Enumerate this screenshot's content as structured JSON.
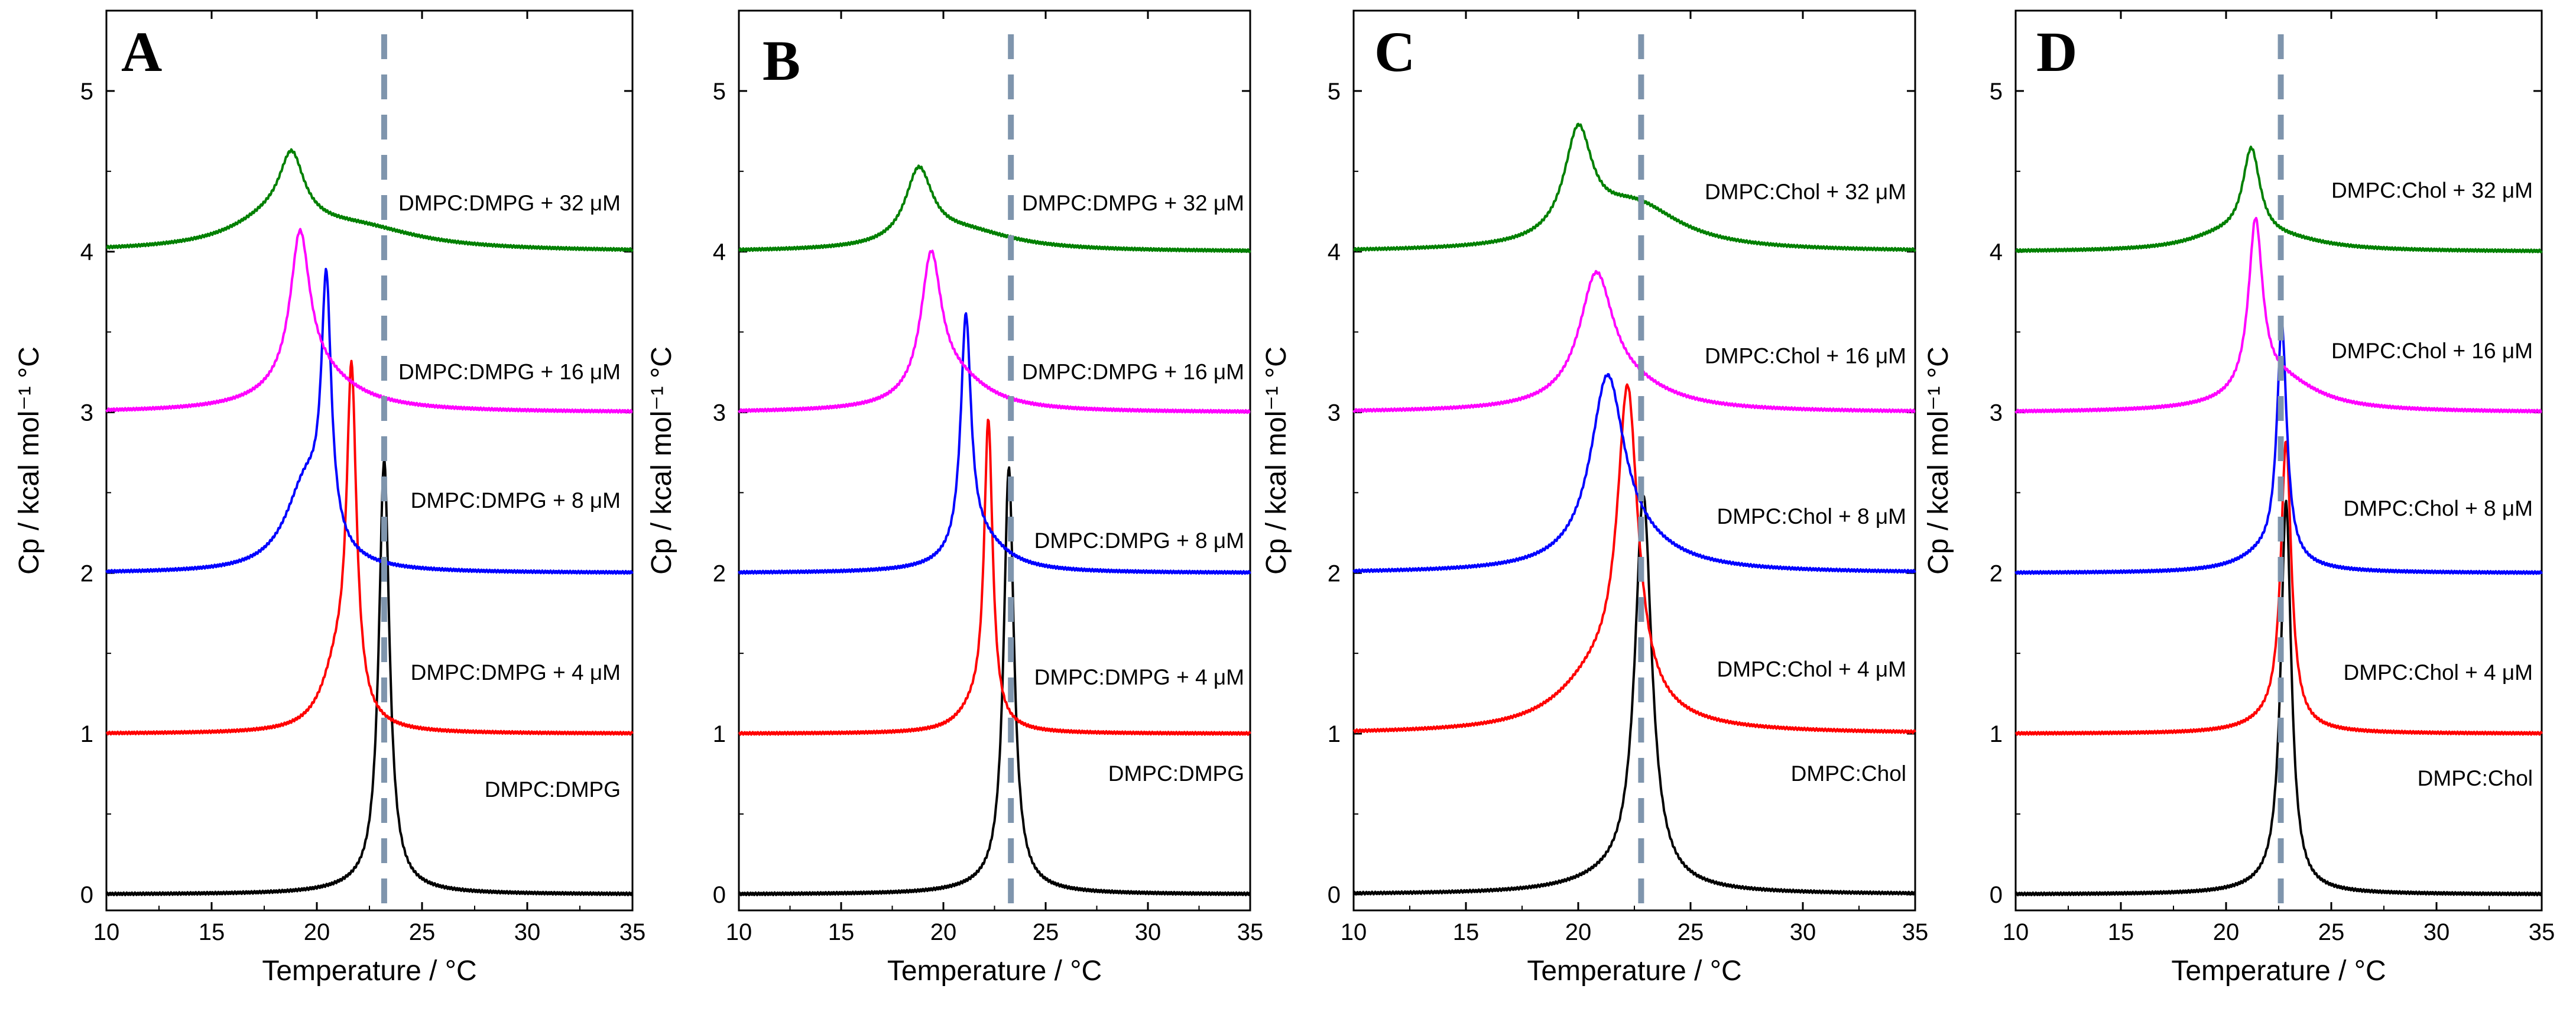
{
  "colors": {
    "black": "#000000",
    "red": "#ff0000",
    "blue": "#0000ff",
    "magenta": "#ff00ff",
    "green": "#008000",
    "dashed_line": "#7f95ad"
  },
  "chart_data": [
    {
      "type": "line",
      "panel": "A",
      "xlabel": "Temperature / °C",
      "ylabel": "Cp / kcal mol⁻¹ °C",
      "xlim": [
        10,
        35
      ],
      "ylim": [
        -0.1,
        5.5
      ],
      "xticks": [
        10,
        15,
        20,
        25,
        30,
        35
      ],
      "yticks": [
        0,
        1,
        2,
        3,
        4,
        5
      ],
      "reference_line_x": 23.2,
      "series": [
        {
          "name": "DMPC:DMPG",
          "color": "black",
          "baseline": 0,
          "peaks": [
            {
              "x": 23.2,
              "h": 2.65,
              "w": 0.3
            },
            {
              "x": 22.8,
              "h": 0.06,
              "w": 2.0
            }
          ],
          "label_y": 0.65
        },
        {
          "name": "DMPC:DMPG + 4 μM",
          "color": "red",
          "baseline": 1,
          "peaks": [
            {
              "x": 21.65,
              "h": 2.05,
              "w": 0.28
            },
            {
              "x": 21.0,
              "h": 0.4,
              "w": 0.9
            }
          ],
          "label_y": 1.38
        },
        {
          "name": "DMPC:DMPG + 8 μM",
          "color": "blue",
          "baseline": 2,
          "peaks": [
            {
              "x": 20.45,
              "h": 1.55,
              "w": 0.28
            },
            {
              "x": 19.5,
              "h": 0.55,
              "w": 1.2
            }
          ],
          "label_y": 2.45
        },
        {
          "name": "DMPC:DMPG + 16 μM",
          "color": "magenta",
          "baseline": 3,
          "peaks": [
            {
              "x": 19.2,
              "h": 0.9,
              "w": 0.55
            },
            {
              "x": 19.8,
              "h": 0.25,
              "w": 2.2
            }
          ],
          "label_y": 3.25
        },
        {
          "name": "DMPC:DMPG + 32 μM",
          "color": "green",
          "baseline": 4,
          "peaks": [
            {
              "x": 18.8,
              "h": 0.4,
              "w": 0.7
            },
            {
              "x": 18.0,
              "h": 0.18,
              "w": 2.5
            },
            {
              "x": 22.0,
              "h": 0.12,
              "w": 3.5
            }
          ],
          "label_y": 4.3
        }
      ]
    },
    {
      "type": "line",
      "panel": "B",
      "xlabel": "Temperature / °C",
      "ylabel": "Cp / kcal mol⁻¹ °C",
      "xlim": [
        10,
        35
      ],
      "ylim": [
        -0.1,
        5.5
      ],
      "xticks": [
        10,
        15,
        20,
        25,
        30,
        35
      ],
      "yticks": [
        0,
        1,
        2,
        3,
        4,
        5
      ],
      "reference_line_x": 23.3,
      "series": [
        {
          "name": "DMPC:DMPG",
          "color": "black",
          "baseline": 0,
          "peaks": [
            {
              "x": 23.2,
              "h": 2.6,
              "w": 0.3
            },
            {
              "x": 22.8,
              "h": 0.06,
              "w": 2.0
            }
          ],
          "label_y": 0.75
        },
        {
          "name": "DMPC:DMPG + 4 μM",
          "color": "red",
          "baseline": 1,
          "peaks": [
            {
              "x": 22.2,
              "h": 1.85,
              "w": 0.25
            },
            {
              "x": 21.6,
              "h": 0.15,
              "w": 1.0
            }
          ],
          "label_y": 1.35
        },
        {
          "name": "DMPC:DMPG + 8 μM",
          "color": "blue",
          "baseline": 2,
          "peaks": [
            {
              "x": 21.1,
              "h": 1.45,
              "w": 0.3
            },
            {
              "x": 21.8,
              "h": 0.2,
              "w": 1.5
            }
          ],
          "label_y": 2.2
        },
        {
          "name": "DMPC:DMPG + 16 μM",
          "color": "magenta",
          "baseline": 3,
          "peaks": [
            {
              "x": 19.4,
              "h": 0.85,
              "w": 0.6
            },
            {
              "x": 20.5,
              "h": 0.2,
              "w": 2.0
            }
          ],
          "label_y": 3.25
        },
        {
          "name": "DMPC:DMPG + 32 μM",
          "color": "green",
          "baseline": 4,
          "peaks": [
            {
              "x": 18.8,
              "h": 0.45,
              "w": 0.8
            },
            {
              "x": 21.0,
              "h": 0.12,
              "w": 3.0
            }
          ],
          "label_y": 4.3
        }
      ]
    },
    {
      "type": "line",
      "panel": "C",
      "xlabel": "Temperature / °C",
      "ylabel": "Cp / kcal mol⁻¹ °C",
      "xlim": [
        10,
        35
      ],
      "ylim": [
        -0.1,
        5.5
      ],
      "xticks": [
        10,
        15,
        20,
        25,
        30,
        35
      ],
      "yticks": [
        0,
        1,
        2,
        3,
        4,
        5
      ],
      "reference_line_x": 22.8,
      "series": [
        {
          "name": "DMPC:Chol",
          "color": "black",
          "baseline": 0,
          "peaks": [
            {
              "x": 22.9,
              "h": 2.4,
              "w": 0.45
            },
            {
              "x": 22.0,
              "h": 0.1,
              "w": 2.5
            }
          ],
          "label_y": 0.75
        },
        {
          "name": "DMPC:Chol + 4 μM",
          "color": "red",
          "baseline": 1,
          "peaks": [
            {
              "x": 22.2,
              "h": 1.9,
              "w": 0.55
            },
            {
              "x": 21.0,
              "h": 0.35,
              "w": 2.2
            }
          ],
          "label_y": 1.4
        },
        {
          "name": "DMPC:Chol + 8 μM",
          "color": "blue",
          "baseline": 2,
          "peaks": [
            {
              "x": 21.3,
              "h": 1.1,
              "w": 0.9
            },
            {
              "x": 22.2,
              "h": 0.15,
              "w": 2.5
            }
          ],
          "label_y": 2.35
        },
        {
          "name": "DMPC:Chol + 16 μM",
          "color": "magenta",
          "baseline": 3,
          "peaks": [
            {
              "x": 20.8,
              "h": 0.75,
              "w": 0.9
            },
            {
              "x": 22.0,
              "h": 0.15,
              "w": 2.5
            }
          ],
          "label_y": 3.35
        },
        {
          "name": "DMPC:Chol + 32 μM",
          "color": "green",
          "baseline": 4,
          "peaks": [
            {
              "x": 20.0,
              "h": 0.65,
              "w": 0.75
            },
            {
              "x": 22.5,
              "h": 0.28,
              "w": 2.5
            }
          ],
          "label_y": 4.37
        }
      ]
    },
    {
      "type": "line",
      "panel": "D",
      "xlabel": "Temperature / °C",
      "ylabel": "Cp / kcal mol⁻¹ °C",
      "xlim": [
        10,
        35
      ],
      "ylim": [
        -0.1,
        5.5
      ],
      "xticks": [
        10,
        15,
        20,
        25,
        30,
        35
      ],
      "yticks": [
        0,
        1,
        2,
        3,
        4,
        5
      ],
      "reference_line_x": 22.6,
      "series": [
        {
          "name": "DMPC:Chol",
          "color": "black",
          "baseline": 0,
          "peaks": [
            {
              "x": 22.85,
              "h": 2.4,
              "w": 0.3
            },
            {
              "x": 22.3,
              "h": 0.05,
              "w": 1.8
            }
          ],
          "label_y": 0.72
        },
        {
          "name": "DMPC:Chol + 4 μM",
          "color": "red",
          "baseline": 1,
          "peaks": [
            {
              "x": 22.85,
              "h": 1.75,
              "w": 0.3
            },
            {
              "x": 22.3,
              "h": 0.08,
              "w": 1.5
            }
          ],
          "label_y": 1.38
        },
        {
          "name": "DMPC:Chol + 8 μM",
          "color": "blue",
          "baseline": 2,
          "peaks": [
            {
              "x": 22.65,
              "h": 1.45,
              "w": 0.28
            },
            {
              "x": 22.0,
              "h": 0.12,
              "w": 1.6
            }
          ],
          "label_y": 2.4
        },
        {
          "name": "DMPC:Chol + 16 μM",
          "color": "magenta",
          "baseline": 3,
          "peaks": [
            {
              "x": 21.4,
              "h": 1.05,
              "w": 0.4
            },
            {
              "x": 22.5,
              "h": 0.2,
              "w": 2.2
            }
          ],
          "label_y": 3.38
        },
        {
          "name": "DMPC:Chol + 32 μM",
          "color": "green",
          "baseline": 4,
          "peaks": [
            {
              "x": 21.2,
              "h": 0.55,
              "w": 0.5
            },
            {
              "x": 19.8,
              "h": 0.08,
              "w": 2.0
            },
            {
              "x": 22.8,
              "h": 0.06,
              "w": 2.5
            }
          ],
          "label_y": 4.38
        }
      ]
    }
  ]
}
